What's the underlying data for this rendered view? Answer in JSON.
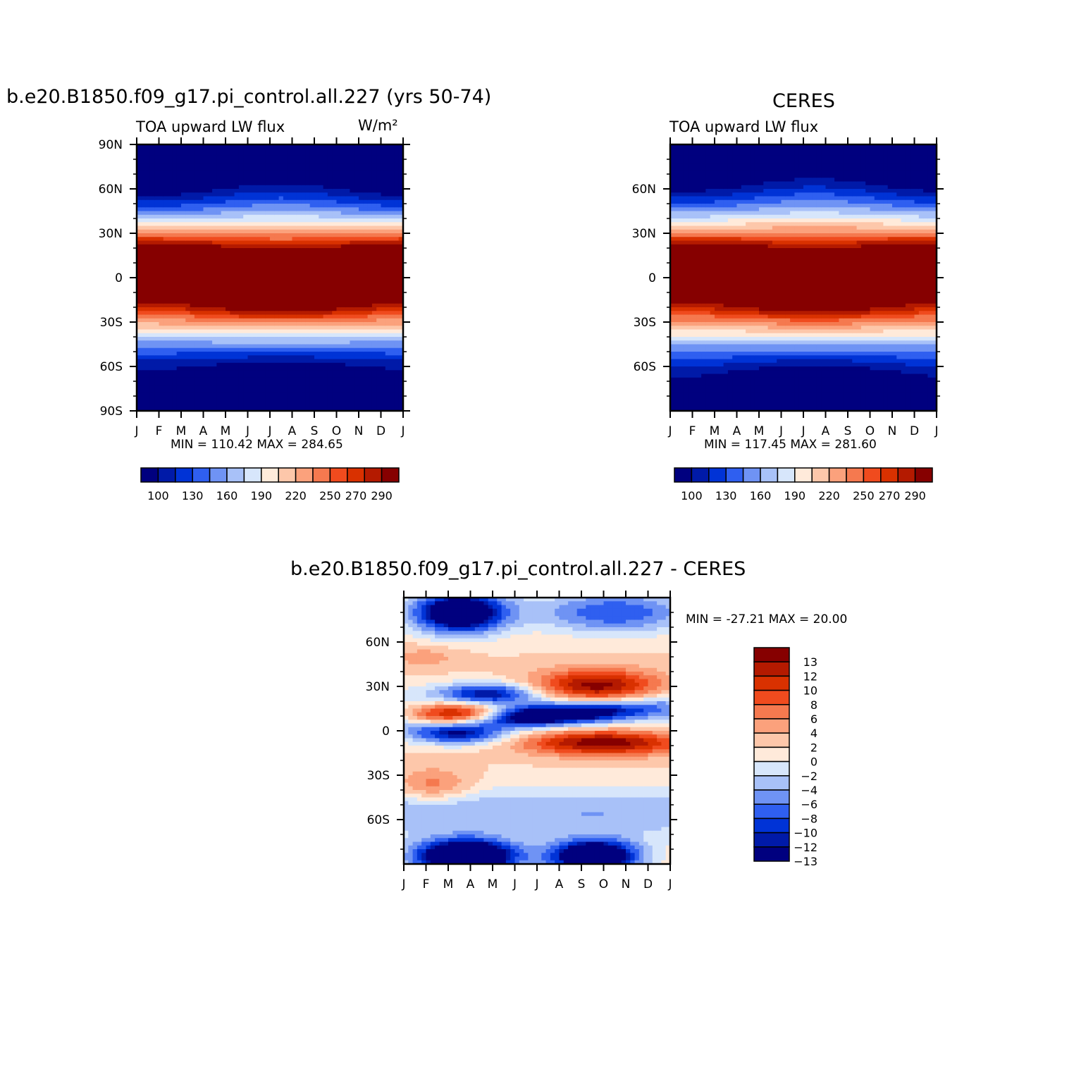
{
  "panel_model": {
    "title": "b.e20.B1850.f09_g17.pi_control.all.227 (yrs 50-74)",
    "subtitle_left": "TOA upward LW flux",
    "subtitle_right": "W/m²",
    "minmax": "MIN =  110.42  MAX =  284.65"
  },
  "panel_obs": {
    "title": "CERES",
    "subtitle_left": "TOA upward LW flux",
    "minmax": "MIN =  117.45  MAX =  281.60"
  },
  "panel_diff": {
    "title": "b.e20.B1850.f09_g17.pi_control.all.227 - CERES",
    "minmax": "MIN = -27.21  MAX =  20.00"
  },
  "colors": {
    "abs_palette": [
      "#00007f",
      "#001aa8",
      "#0033d6",
      "#2f5ff0",
      "#6f93f4",
      "#a8c1f8",
      "#d7e6fb",
      "#ffeada",
      "#fdc7aa",
      "#fba17c",
      "#f5794f",
      "#f04b1e",
      "#d93100",
      "#b41a00",
      "#860000"
    ],
    "diff_palette": [
      "#00007f",
      "#001aa8",
      "#0033d6",
      "#2f5ff0",
      "#6f93f4",
      "#a8c1f8",
      "#d7e6fb",
      "#ffeada",
      "#fdc7aa",
      "#fba17c",
      "#f5794f",
      "#f04b1e",
      "#d93100",
      "#b41a00",
      "#860000"
    ]
  },
  "chart_data": [
    {
      "type": "heatmap",
      "name": "model",
      "x": [
        "J",
        "F",
        "M",
        "A",
        "M",
        "J",
        "J",
        "A",
        "S",
        "O",
        "N",
        "D",
        "J"
      ],
      "y_ticks": [
        "90N",
        "60N",
        "30N",
        "0",
        "30S",
        "60S",
        "90S"
      ],
      "lat_range": [
        -90,
        90
      ],
      "levels": [
        100,
        110,
        120,
        130,
        140,
        150,
        160,
        170,
        180,
        190,
        200,
        210,
        220,
        230,
        240,
        250,
        260,
        270,
        280,
        290
      ],
      "colorbar_labels": [
        "100",
        "130",
        "160",
        "190",
        "220",
        "250",
        "270",
        "290"
      ],
      "min": 110.42,
      "max": 284.65
    },
    {
      "type": "heatmap",
      "name": "CERES",
      "x": [
        "J",
        "F",
        "M",
        "A",
        "M",
        "J",
        "J",
        "A",
        "S",
        "O",
        "N",
        "D",
        "J"
      ],
      "y_ticks": [
        "60N",
        "30N",
        "0",
        "30S",
        "60S"
      ],
      "lat_range": [
        -90,
        90
      ],
      "levels": [
        100,
        110,
        120,
        130,
        140,
        150,
        160,
        170,
        180,
        190,
        200,
        210,
        220,
        230,
        240,
        250,
        260,
        270,
        280,
        290
      ],
      "colorbar_labels": [
        "100",
        "130",
        "160",
        "190",
        "220",
        "250",
        "270",
        "290"
      ],
      "min": 117.45,
      "max": 281.6
    },
    {
      "type": "heatmap",
      "name": "difference",
      "x": [
        "J",
        "F",
        "M",
        "A",
        "M",
        "J",
        "J",
        "A",
        "S",
        "O",
        "N",
        "D",
        "J"
      ],
      "y_ticks": [
        "60N",
        "30N",
        "0",
        "30S",
        "60S"
      ],
      "lat_range": [
        -90,
        90
      ],
      "levels": [
        -13,
        -12,
        -10,
        -8,
        -6,
        -4,
        -2,
        0,
        2,
        4,
        6,
        8,
        10,
        12,
        13
      ],
      "colorbar_labels": [
        "13",
        "12",
        "10",
        "8",
        "6",
        "4",
        "2",
        "0",
        "-2",
        "-4",
        "-6",
        "-8",
        "-10",
        "-12",
        "-13"
      ],
      "min": -27.21,
      "max": 20.0
    }
  ]
}
